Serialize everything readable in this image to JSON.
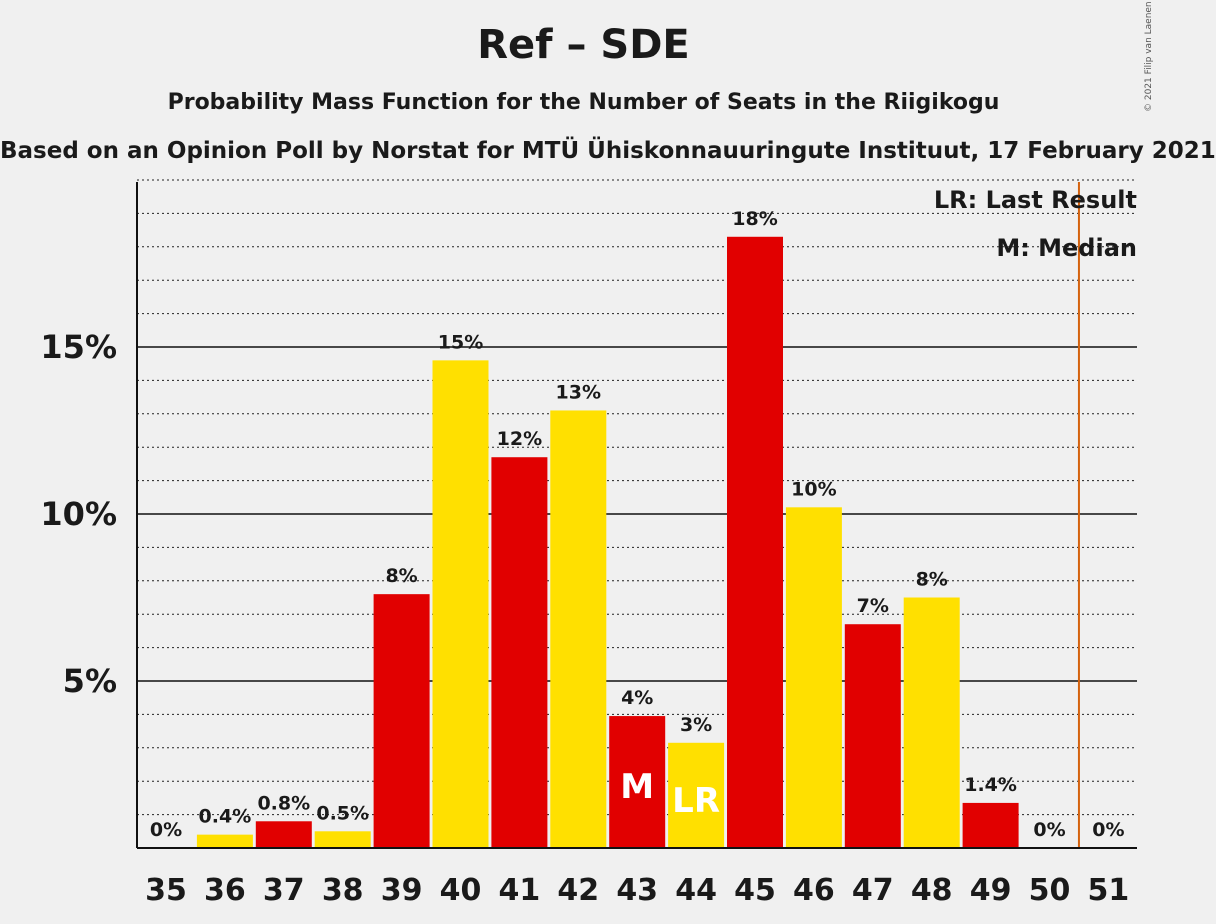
{
  "chart_data": {
    "type": "bar",
    "title": "Ref – SDE",
    "subtitle": "Probability Mass Function for the Number of Seats in the Riigikogu",
    "subtitle2": "Based on an Opinion Poll by Norstat for MTÜ Ühiskonnauuringute Instituut, 17 February 2021",
    "copyright": "© 2021 Filip van Laenen",
    "legend": [
      "LR: Last Result",
      "M: Median"
    ],
    "categories": [
      "35",
      "36",
      "37",
      "38",
      "39",
      "40",
      "41",
      "42",
      "43",
      "44",
      "45",
      "46",
      "47",
      "48",
      "49",
      "50",
      "51"
    ],
    "values": [
      0,
      0.4,
      0.8,
      0.5,
      7.6,
      14.6,
      11.7,
      13.1,
      3.95,
      3.15,
      18.3,
      10.2,
      6.7,
      7.5,
      1.35,
      0,
      0
    ],
    "labels": [
      "0%",
      "0.4%",
      "0.8%",
      "0.5%",
      "8%",
      "15%",
      "12%",
      "13%",
      "4%",
      "3%",
      "18%",
      "10%",
      "7%",
      "8%",
      "1.4%",
      "0%",
      "0%"
    ],
    "colors": [
      "#e10000",
      "#ffe000",
      "#e10000",
      "#ffe000",
      "#e10000",
      "#ffe000",
      "#e10000",
      "#ffe000",
      "#e10000",
      "#ffe000",
      "#e10000",
      "#ffe000",
      "#e10000",
      "#ffe000",
      "#e10000",
      "#ffe000",
      "#e10000"
    ],
    "median": {
      "category": "43",
      "label": "M"
    },
    "last_result": {
      "category": "44",
      "label": "LR"
    },
    "majority_line_after": "50",
    "majority_color": "#d4620e",
    "yticks": [
      5,
      10,
      15
    ],
    "ytick_labels": [
      "5%",
      "10%",
      "15%"
    ],
    "ylim": [
      0,
      20
    ],
    "xlabel": "",
    "ylabel": ""
  }
}
